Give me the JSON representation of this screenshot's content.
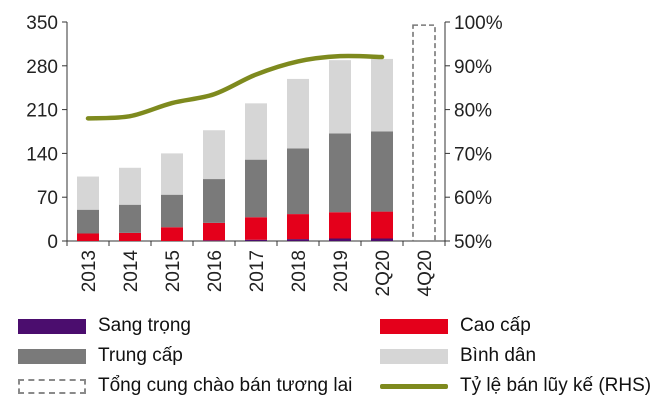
{
  "chart_data": {
    "type": "bar",
    "subtype": "stacked-bar-with-line",
    "categories": [
      "2013",
      "2014",
      "2015",
      "2016",
      "2017",
      "2018",
      "2019",
      "2Q20",
      "4Q20"
    ],
    "series": [
      {
        "name": "Sang trọng",
        "color": "#4b0d6e",
        "values": [
          0,
          0,
          0,
          1,
          2,
          3,
          4,
          4,
          null
        ]
      },
      {
        "name": "Cao cấp",
        "color": "#e4001b",
        "values": [
          12,
          13,
          22,
          28,
          36,
          40,
          42,
          43,
          null
        ]
      },
      {
        "name": "Trung cấp",
        "color": "#7a7a7a",
        "values": [
          38,
          45,
          52,
          70,
          92,
          105,
          126,
          128,
          null
        ]
      },
      {
        "name": "Bình dân",
        "color": "#d6d6d6",
        "values": [
          53,
          59,
          66,
          78,
          90,
          111,
          117,
          116,
          null
        ]
      }
    ],
    "line_series": {
      "name": "Tỷ lệ bán lũy kế (RHS)",
      "color": "#7e8a1e",
      "axis": "right",
      "values": [
        78,
        78.5,
        81.5,
        83.5,
        88,
        91,
        92.2,
        92,
        null
      ]
    },
    "future_supply": {
      "name": "Tổng cung chào bán tương lai",
      "category": "4Q20",
      "value": 345,
      "style": "dashed"
    },
    "y_left": {
      "ticks": [
        "0",
        "70",
        "140",
        "210",
        "280",
        "350"
      ],
      "range": [
        0,
        350
      ]
    },
    "y_right": {
      "ticks": [
        "50%",
        "60%",
        "70%",
        "80%",
        "90%",
        "100%"
      ],
      "range": [
        50,
        100
      ]
    },
    "title": "",
    "xlabel": "",
    "ylabel": "",
    "legend_position": "bottom",
    "grid": false
  },
  "legend": {
    "luxury": "Sang trọng",
    "high_end": "Cao cấp",
    "mid_end": "Trung cấp",
    "affordable": "Bình dân",
    "future_supply": "Tổng cung chào bán tương lai",
    "absorption": "Tỷ lệ bán lũy kế (RHS)"
  }
}
